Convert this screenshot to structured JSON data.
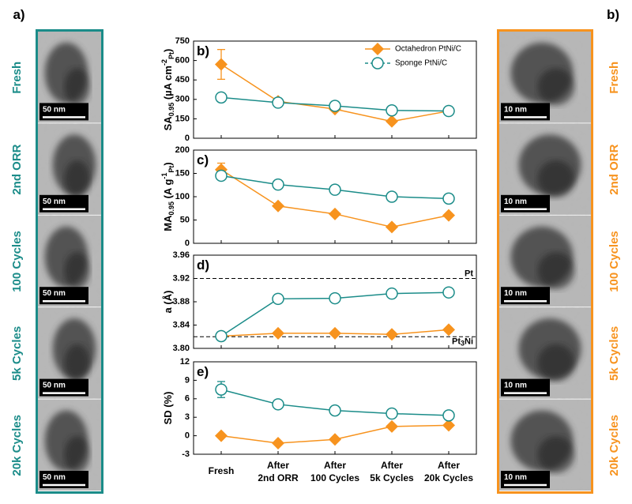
{
  "left_panel": {
    "label": "a)",
    "rows": [
      {
        "label": "Fresh",
        "scale_bar": "50 nm"
      },
      {
        "label": "2nd ORR",
        "scale_bar": "50 nm"
      },
      {
        "label": "100 Cycles",
        "scale_bar": "50 nm"
      },
      {
        "label": "5k Cycles",
        "scale_bar": "50 nm"
      },
      {
        "label": "20k Cycles",
        "scale_bar": "50 nm"
      }
    ]
  },
  "right_panel": {
    "label": "b)",
    "rows": [
      {
        "label": "Fresh",
        "scale_bar": "10 nm"
      },
      {
        "label": "2nd ORR",
        "scale_bar": "10 nm"
      },
      {
        "label": "100 Cycles",
        "scale_bar": "10 nm"
      },
      {
        "label": "5k Cycles",
        "scale_bar": "10 nm"
      },
      {
        "label": "20k Cycles",
        "scale_bar": "10 nm"
      }
    ]
  },
  "chart_data": [
    {
      "type": "line",
      "panel_label": "b)",
      "ylabel": [
        "SA",
        "0.95",
        " (µA cm",
        "-2",
        "Pt",
        ")"
      ],
      "ylim": [
        0,
        750
      ],
      "yticks": [
        0,
        150,
        300,
        450,
        600,
        750
      ],
      "legend": "upper right",
      "series": [
        {
          "name": "Octahedron PtNi/C",
          "color": "#f7931e",
          "marker": "diamond",
          "values": [
            570,
            285,
            225,
            130,
            210
          ],
          "errors": [
            115,
            null,
            null,
            null,
            null
          ]
        },
        {
          "name": "Sponge PtNi/C",
          "color": "#1b8c89",
          "marker": "circle",
          "values": [
            315,
            275,
            250,
            215,
            210
          ],
          "errors": [
            25,
            null,
            null,
            null,
            null
          ]
        }
      ]
    },
    {
      "type": "line",
      "panel_label": "c)",
      "ylabel": [
        "MA",
        "0.95",
        " (A g",
        "-1",
        "Pt",
        ")"
      ],
      "ylim": [
        0,
        200
      ],
      "yticks": [
        0,
        50,
        100,
        150,
        200
      ],
      "series": [
        {
          "color": "#f7931e",
          "marker": "diamond",
          "values": [
            158,
            80,
            63,
            35,
            60
          ],
          "errors": [
            14,
            null,
            null,
            null,
            null
          ]
        },
        {
          "color": "#1b8c89",
          "marker": "circle",
          "values": [
            145,
            126,
            115,
            100,
            96
          ],
          "errors": [
            7,
            null,
            null,
            null,
            null
          ]
        }
      ]
    },
    {
      "type": "line",
      "panel_label": "d)",
      "ylabel": [
        "a (Å)"
      ],
      "ylim": [
        3.8,
        3.96
      ],
      "yticks": [
        {
          "value": 3.8,
          "label": "3.80"
        },
        3.84,
        3.88,
        3.92,
        3.96
      ],
      "reference_lines": [
        {
          "value": 3.92,
          "label": [
            "Pt"
          ]
        },
        {
          "value": 3.82,
          "label": [
            "Pt",
            "3",
            "Ni"
          ]
        }
      ],
      "series": [
        {
          "color": "#f7931e",
          "marker": "diamond",
          "values": [
            3.821,
            3.826,
            3.826,
            3.824,
            3.832
          ]
        },
        {
          "color": "#1b8c89",
          "marker": "circle",
          "values": [
            3.821,
            3.885,
            3.886,
            3.894,
            3.896
          ]
        }
      ]
    },
    {
      "type": "line",
      "panel_label": "e)",
      "ylabel": [
        "SD (%)"
      ],
      "ylim": [
        -3,
        12
      ],
      "yticks": [
        -3,
        0,
        3,
        6,
        9,
        12
      ],
      "categories": [
        [
          "Fresh"
        ],
        [
          "After",
          "2nd ORR"
        ],
        [
          "After",
          "100 Cycles"
        ],
        [
          "After",
          "5k Cycles"
        ],
        [
          "After",
          "20k Cycles"
        ]
      ],
      "series": [
        {
          "color": "#f7931e",
          "marker": "diamond",
          "values": [
            0,
            -1.2,
            -0.6,
            1.5,
            1.7
          ]
        },
        {
          "color": "#1b8c89",
          "marker": "circle",
          "values": [
            7.5,
            5.1,
            4.1,
            3.6,
            3.3
          ],
          "errors": [
            1.3,
            null,
            null,
            null,
            null
          ]
        }
      ]
    }
  ]
}
